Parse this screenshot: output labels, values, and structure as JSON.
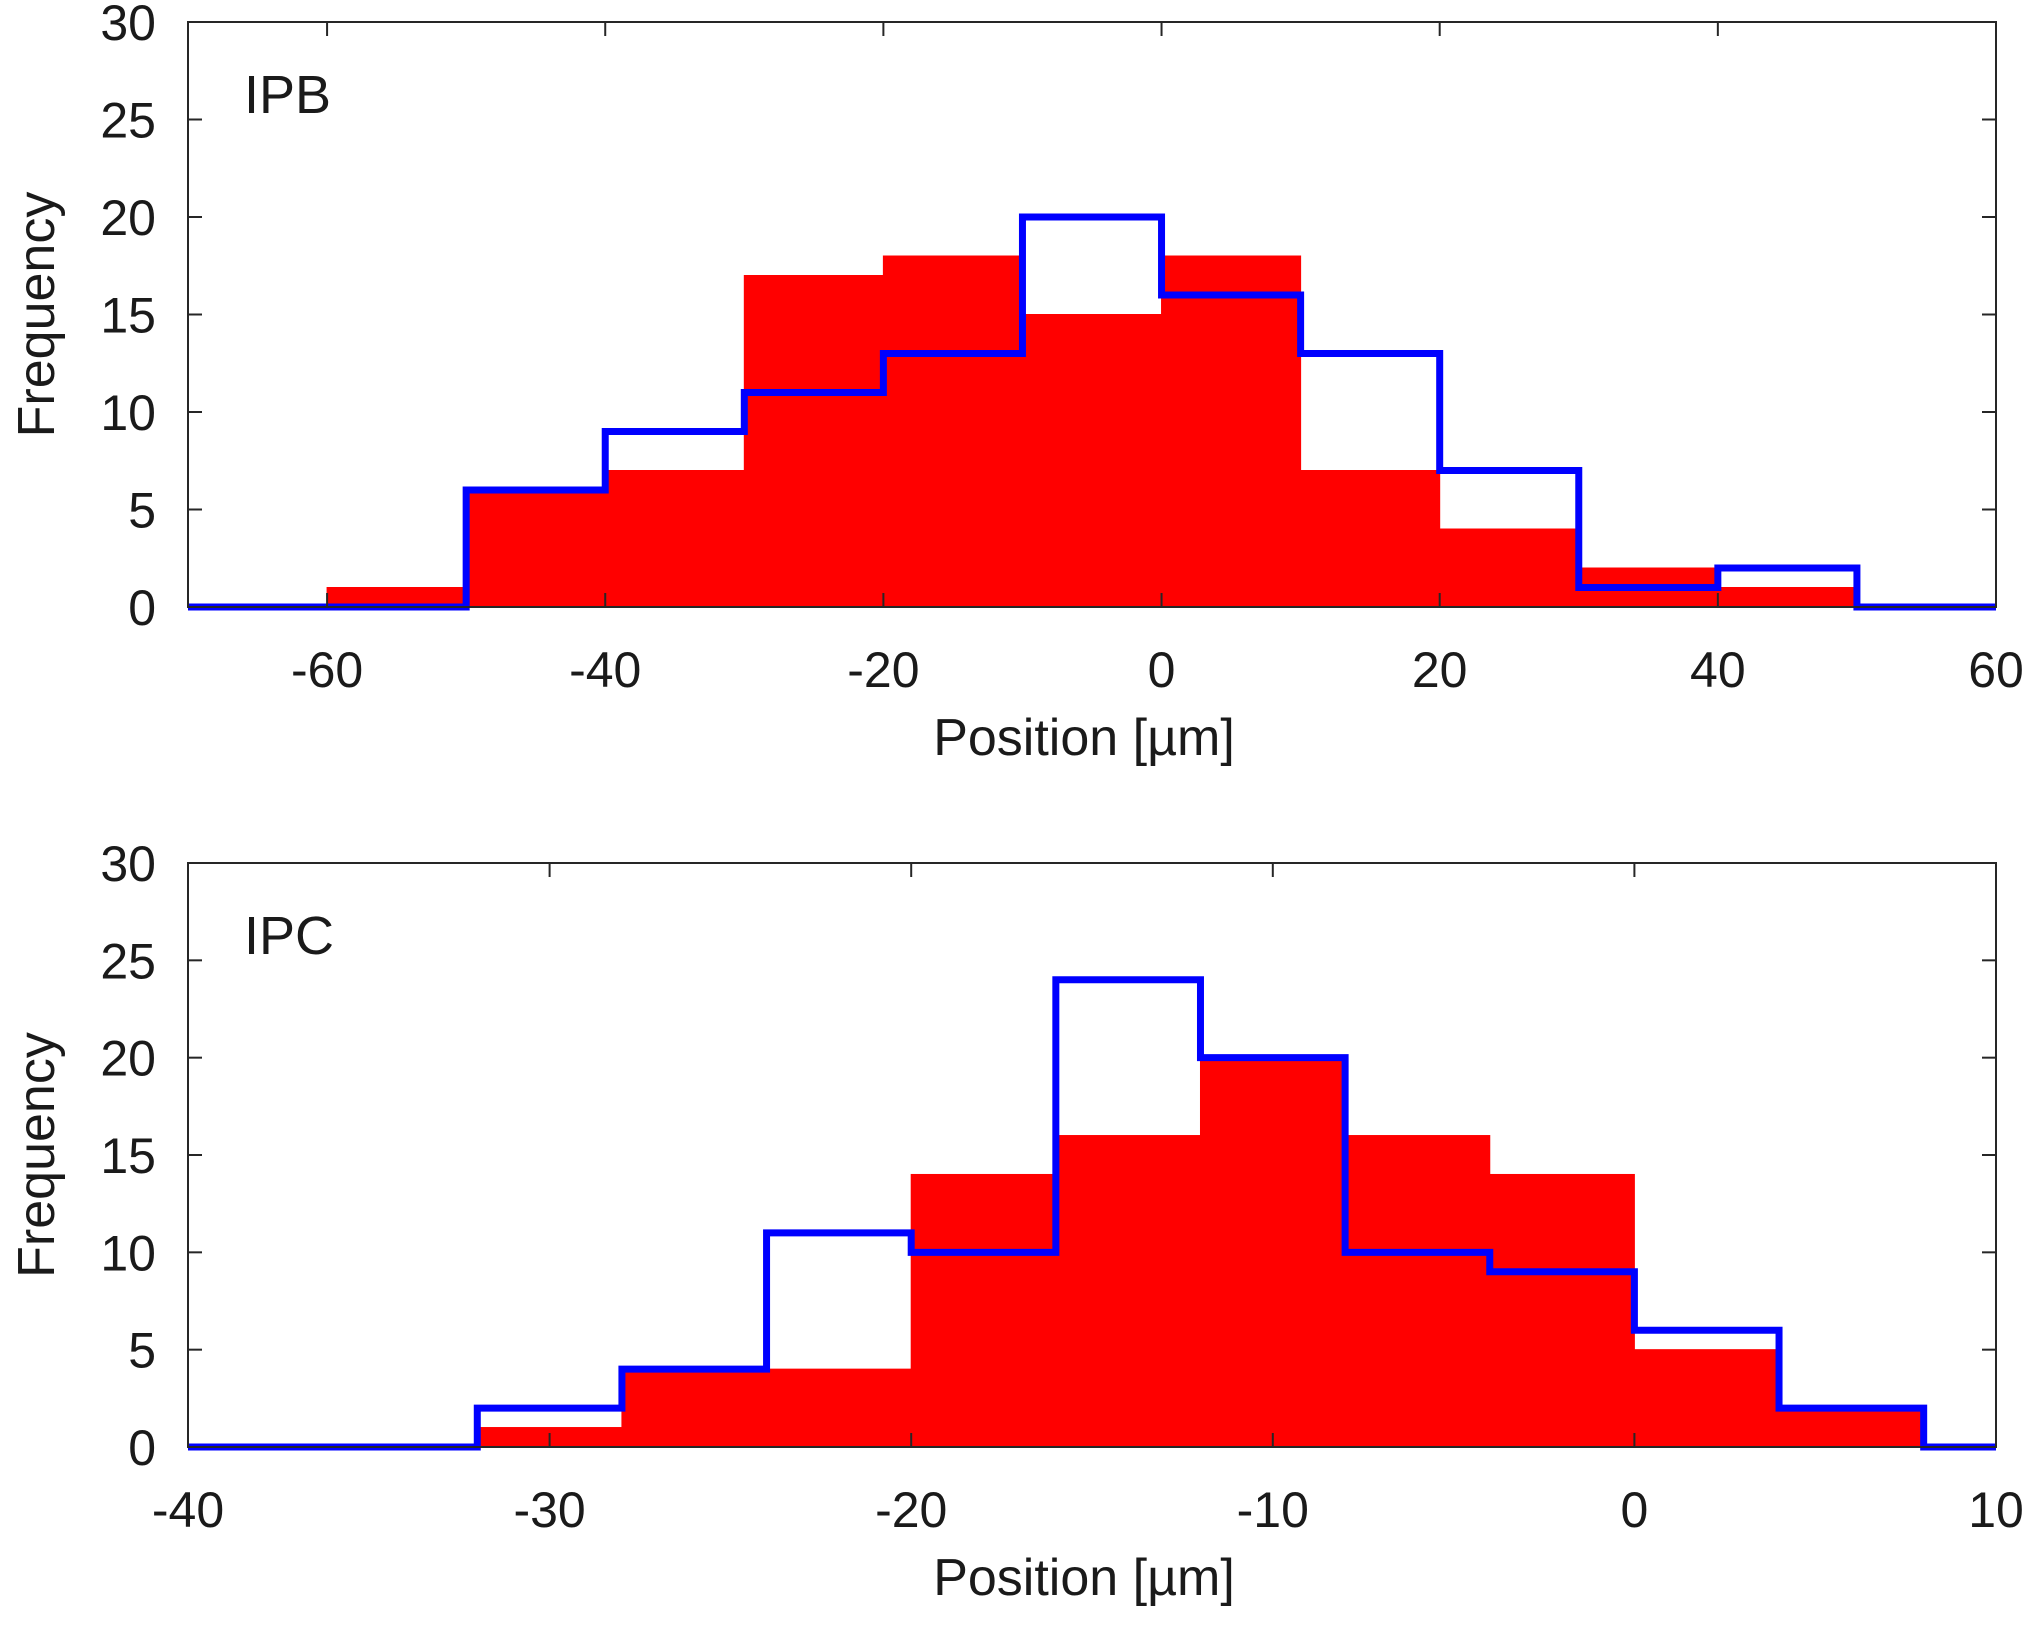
{
  "chart_data": [
    {
      "type": "histogram",
      "panel_label": "IPB",
      "xlabel": "Position [µm]",
      "ylabel": "Frequency",
      "xlim": [
        -70,
        60
      ],
      "ylim": [
        0,
        30
      ],
      "xticks": [
        -60,
        -40,
        -20,
        0,
        20,
        40,
        60
      ],
      "yticks": [
        0,
        5,
        10,
        15,
        20,
        25,
        30
      ],
      "series": [
        {
          "name": "filled",
          "style": "filled",
          "color": "#ff0000",
          "bin_edges": [
            -70,
            -60,
            -50,
            -40,
            -30,
            -20,
            -10,
            0,
            10,
            20,
            30,
            40,
            50,
            60
          ],
          "counts": [
            0,
            1,
            6,
            7,
            17,
            18,
            15,
            18,
            7,
            4,
            2,
            1,
            0
          ]
        },
        {
          "name": "outline",
          "style": "step",
          "color": "#0000ff",
          "bin_edges": [
            -70,
            -60,
            -50,
            -40,
            -30,
            -20,
            -10,
            0,
            10,
            20,
            30,
            40,
            50,
            60
          ],
          "counts": [
            0,
            0,
            6,
            9,
            11,
            13,
            20,
            16,
            13,
            7,
            1,
            2,
            0
          ]
        }
      ]
    },
    {
      "type": "histogram",
      "panel_label": "IPC",
      "xlabel": "Position [µm]",
      "ylabel": "Frequency",
      "xlim": [
        -40,
        10
      ],
      "ylim": [
        0,
        30
      ],
      "xticks": [
        -40,
        -30,
        -20,
        -10,
        0,
        10
      ],
      "yticks": [
        0,
        5,
        10,
        15,
        20,
        25,
        30
      ],
      "series": [
        {
          "name": "filled",
          "style": "filled",
          "color": "#ff0000",
          "bin_edges": [
            -40,
            -36,
            -32,
            -28,
            -24,
            -20,
            -16,
            -12,
            -8,
            -4,
            0,
            4,
            8,
            10
          ],
          "counts": [
            0,
            0,
            1,
            4,
            4,
            14,
            16,
            20,
            16,
            14,
            5,
            2,
            0
          ]
        },
        {
          "name": "outline",
          "style": "step",
          "color": "#0000ff",
          "bin_edges": [
            -40,
            -36,
            -32,
            -28,
            -24,
            -20,
            -16,
            -12,
            -8,
            -4,
            0,
            4,
            8,
            10
          ],
          "counts": [
            0,
            0,
            2,
            4,
            11,
            10,
            24,
            20,
            10,
            9,
            6,
            2,
            0
          ]
        }
      ]
    }
  ]
}
